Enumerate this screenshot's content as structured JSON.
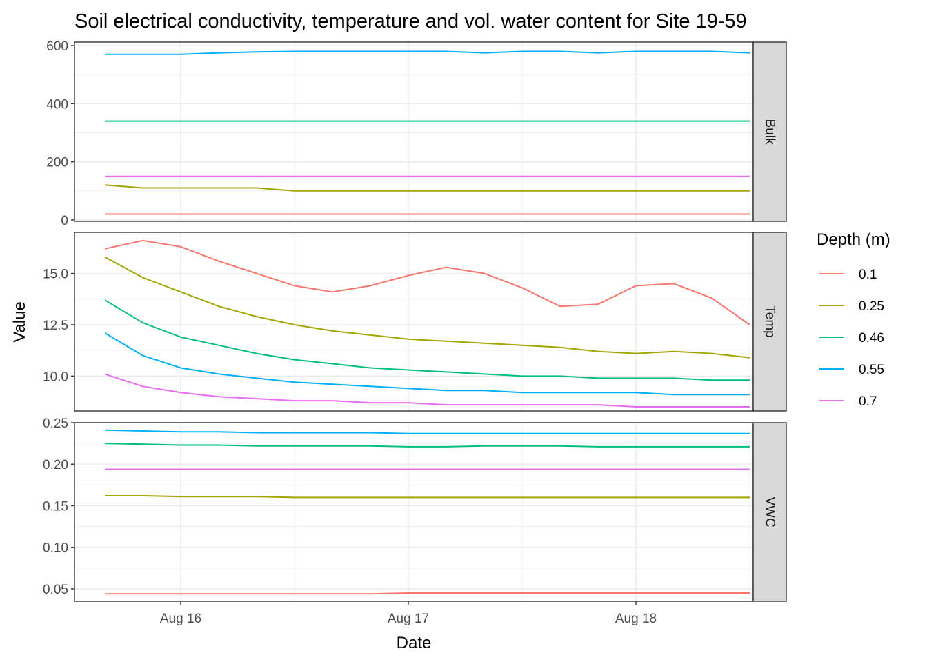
{
  "chart_data": {
    "type": "line",
    "title": "Soil electrical conductivity, temperature and vol. water content for Site 19-59",
    "xlabel": "Date",
    "ylabel": "Value",
    "x_ticks": [
      "Aug 16",
      "Aug 17",
      "Aug 18"
    ],
    "x_range": [
      "2023-08-15 14:00",
      "2023-08-18 10:00"
    ],
    "legend": {
      "title": "Depth (m)",
      "placement": "right",
      "entries": [
        {
          "label": "0.1",
          "color": "#F8766D"
        },
        {
          "label": "0.25",
          "color": "#A3A500"
        },
        {
          "label": "0.46",
          "color": "#00BF7D"
        },
        {
          "label": "0.55",
          "color": "#00B0F6"
        },
        {
          "label": "0.7",
          "color": "#E76BF3"
        }
      ]
    },
    "x_hours": [
      0,
      4,
      8,
      12,
      16,
      20,
      24,
      28,
      32,
      36,
      40,
      44,
      48,
      52,
      56,
      60,
      64,
      68
    ],
    "panels": [
      {
        "strip": "Bulk",
        "ylim": [
          -5,
          612
        ],
        "y_ticks": [
          {
            "v": 0,
            "label": "0"
          },
          {
            "v": 200,
            "label": "200"
          },
          {
            "v": 400,
            "label": "400"
          },
          {
            "v": 600,
            "label": "600"
          }
        ],
        "series": [
          {
            "name": "0.1",
            "values": [
              20,
              20,
              20,
              20,
              20,
              20,
              20,
              20,
              20,
              20,
              20,
              20,
              20,
              20,
              20,
              20,
              20,
              20
            ]
          },
          {
            "name": "0.25",
            "values": [
              120,
              110,
              110,
              110,
              110,
              100,
              100,
              100,
              100,
              100,
              100,
              100,
              100,
              100,
              100,
              100,
              100,
              100
            ]
          },
          {
            "name": "0.46",
            "values": [
              340,
              340,
              340,
              340,
              340,
              340,
              340,
              340,
              340,
              340,
              340,
              340,
              340,
              340,
              340,
              340,
              340,
              340
            ]
          },
          {
            "name": "0.55",
            "values": [
              570,
              570,
              570,
              575,
              578,
              580,
              580,
              580,
              580,
              580,
              575,
              580,
              580,
              575,
              580,
              580,
              580,
              575
            ]
          },
          {
            "name": "0.7",
            "values": [
              150,
              150,
              150,
              150,
              150,
              150,
              150,
              150,
              150,
              150,
              150,
              150,
              150,
              150,
              150,
              150,
              150,
              150
            ]
          }
        ]
      },
      {
        "strip": "Temp",
        "ylim": [
          8.3,
          17.0
        ],
        "y_ticks": [
          {
            "v": 10.0,
            "label": "10.0"
          },
          {
            "v": 12.5,
            "label": "12.5"
          },
          {
            "v": 15.0,
            "label": "15.0"
          }
        ],
        "series": [
          {
            "name": "0.1",
            "values": [
              16.2,
              16.6,
              16.3,
              15.6,
              15.0,
              14.4,
              14.1,
              14.4,
              14.9,
              15.3,
              15.0,
              14.3,
              13.4,
              13.5,
              14.4,
              14.5,
              13.8,
              12.5
            ]
          },
          {
            "name": "0.25",
            "values": [
              15.8,
              14.8,
              14.1,
              13.4,
              12.9,
              12.5,
              12.2,
              12.0,
              11.8,
              11.7,
              11.6,
              11.5,
              11.4,
              11.2,
              11.1,
              11.2,
              11.1,
              10.9
            ]
          },
          {
            "name": "0.46",
            "values": [
              13.7,
              12.6,
              11.9,
              11.5,
              11.1,
              10.8,
              10.6,
              10.4,
              10.3,
              10.2,
              10.1,
              10.0,
              10.0,
              9.9,
              9.9,
              9.9,
              9.8,
              9.8
            ]
          },
          {
            "name": "0.55",
            "values": [
              12.1,
              11.0,
              10.4,
              10.1,
              9.9,
              9.7,
              9.6,
              9.5,
              9.4,
              9.3,
              9.3,
              9.2,
              9.2,
              9.2,
              9.2,
              9.1,
              9.1,
              9.1
            ]
          },
          {
            "name": "0.7",
            "values": [
              10.1,
              9.5,
              9.2,
              9.0,
              8.9,
              8.8,
              8.8,
              8.7,
              8.7,
              8.6,
              8.6,
              8.6,
              8.6,
              8.6,
              8.5,
              8.5,
              8.5,
              8.5
            ]
          }
        ]
      },
      {
        "strip": "VWC",
        "ylim": [
          0.035,
          0.25
        ],
        "y_ticks": [
          {
            "v": 0.05,
            "label": "0.05"
          },
          {
            "v": 0.1,
            "label": "0.10"
          },
          {
            "v": 0.15,
            "label": "0.15"
          },
          {
            "v": 0.2,
            "label": "0.20"
          },
          {
            "v": 0.25,
            "label": "0.25"
          }
        ],
        "series": [
          {
            "name": "0.1",
            "values": [
              0.044,
              0.044,
              0.044,
              0.044,
              0.044,
              0.044,
              0.044,
              0.044,
              0.045,
              0.045,
              0.045,
              0.045,
              0.045,
              0.045,
              0.045,
              0.045,
              0.045,
              0.045
            ]
          },
          {
            "name": "0.25",
            "values": [
              0.162,
              0.162,
              0.161,
              0.161,
              0.161,
              0.16,
              0.16,
              0.16,
              0.16,
              0.16,
              0.16,
              0.16,
              0.16,
              0.16,
              0.16,
              0.16,
              0.16,
              0.16
            ]
          },
          {
            "name": "0.46",
            "values": [
              0.225,
              0.224,
              0.223,
              0.223,
              0.222,
              0.222,
              0.222,
              0.222,
              0.221,
              0.221,
              0.222,
              0.222,
              0.222,
              0.221,
              0.221,
              0.221,
              0.221,
              0.221
            ]
          },
          {
            "name": "0.55",
            "values": [
              0.241,
              0.24,
              0.239,
              0.239,
              0.238,
              0.238,
              0.238,
              0.238,
              0.237,
              0.237,
              0.237,
              0.237,
              0.237,
              0.237,
              0.237,
              0.237,
              0.237,
              0.237
            ]
          },
          {
            "name": "0.7",
            "values": [
              0.194,
              0.194,
              0.194,
              0.194,
              0.194,
              0.194,
              0.194,
              0.194,
              0.194,
              0.194,
              0.194,
              0.194,
              0.194,
              0.194,
              0.194,
              0.194,
              0.194,
              0.194
            ]
          }
        ]
      }
    ]
  }
}
